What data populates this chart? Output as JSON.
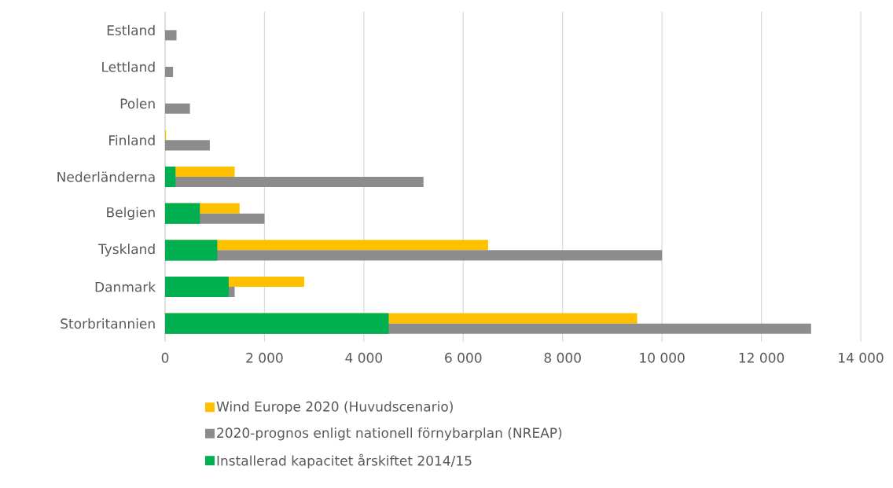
{
  "chart_data": {
    "type": "bar",
    "orientation": "horizontal",
    "categories": [
      "Estland",
      "Lettland",
      "Polen",
      "Finland",
      "Nederländerna",
      "Belgien",
      "Tyskland",
      "Danmark",
      "Storbritannien"
    ],
    "series": [
      {
        "name": "Wind Europe 2020 (Huvudscenario)",
        "color": "#ffc000",
        "values": [
          null,
          null,
          null,
          20,
          1400,
          1500,
          6500,
          2800,
          9500
        ]
      },
      {
        "name": "2020-prognos enligt nationell förnybarplan (NREAP)",
        "color": "#8c8c8c",
        "values": [
          230,
          160,
          500,
          900,
          5200,
          2000,
          10000,
          1400,
          13000
        ]
      },
      {
        "name": "Installerad kapacitet årskiftet 2014/15",
        "color": "#00b050",
        "values": [
          null,
          null,
          null,
          null,
          210,
          700,
          1050,
          1280,
          4500
        ]
      }
    ],
    "xlim": [
      0,
      14000
    ],
    "xticks": [
      0,
      {
        "value": 2000,
        "label": "2 000"
      },
      {
        "value": 4000,
        "label": "4 000"
      },
      {
        "value": 6000,
        "label": "6 000"
      },
      {
        "value": 8000,
        "label": "8 000"
      },
      {
        "value": 10000,
        "label": "10 000"
      },
      {
        "value": 12000,
        "label": "12 000"
      },
      {
        "value": 14000,
        "label": "14 000"
      }
    ],
    "grid": "x",
    "legend": "bottom"
  }
}
